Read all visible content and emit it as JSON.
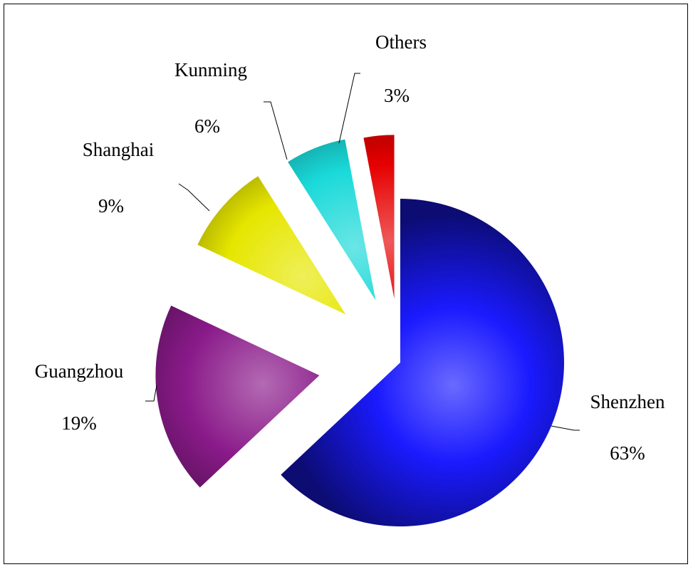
{
  "chart_data": {
    "type": "pie",
    "title": "",
    "slices": [
      {
        "label": "Shenzhen",
        "value": 63,
        "value_label": "63%",
        "color": "#1a1aff"
      },
      {
        "label": "Guangzhou",
        "value": 19,
        "value_label": "19%",
        "color": "#8a1a8a"
      },
      {
        "label": "Shanghai",
        "value": 9,
        "value_label": "9%",
        "color": "#e6e600"
      },
      {
        "label": "Kunming",
        "value": 6,
        "value_label": "6%",
        "color": "#1ad9d9"
      },
      {
        "label": "Others",
        "value": 3,
        "value_label": "3%",
        "color": "#e60000"
      }
    ],
    "exploded": true,
    "legend": "none",
    "start_angle_deg": 0,
    "direction": "clockwise"
  }
}
